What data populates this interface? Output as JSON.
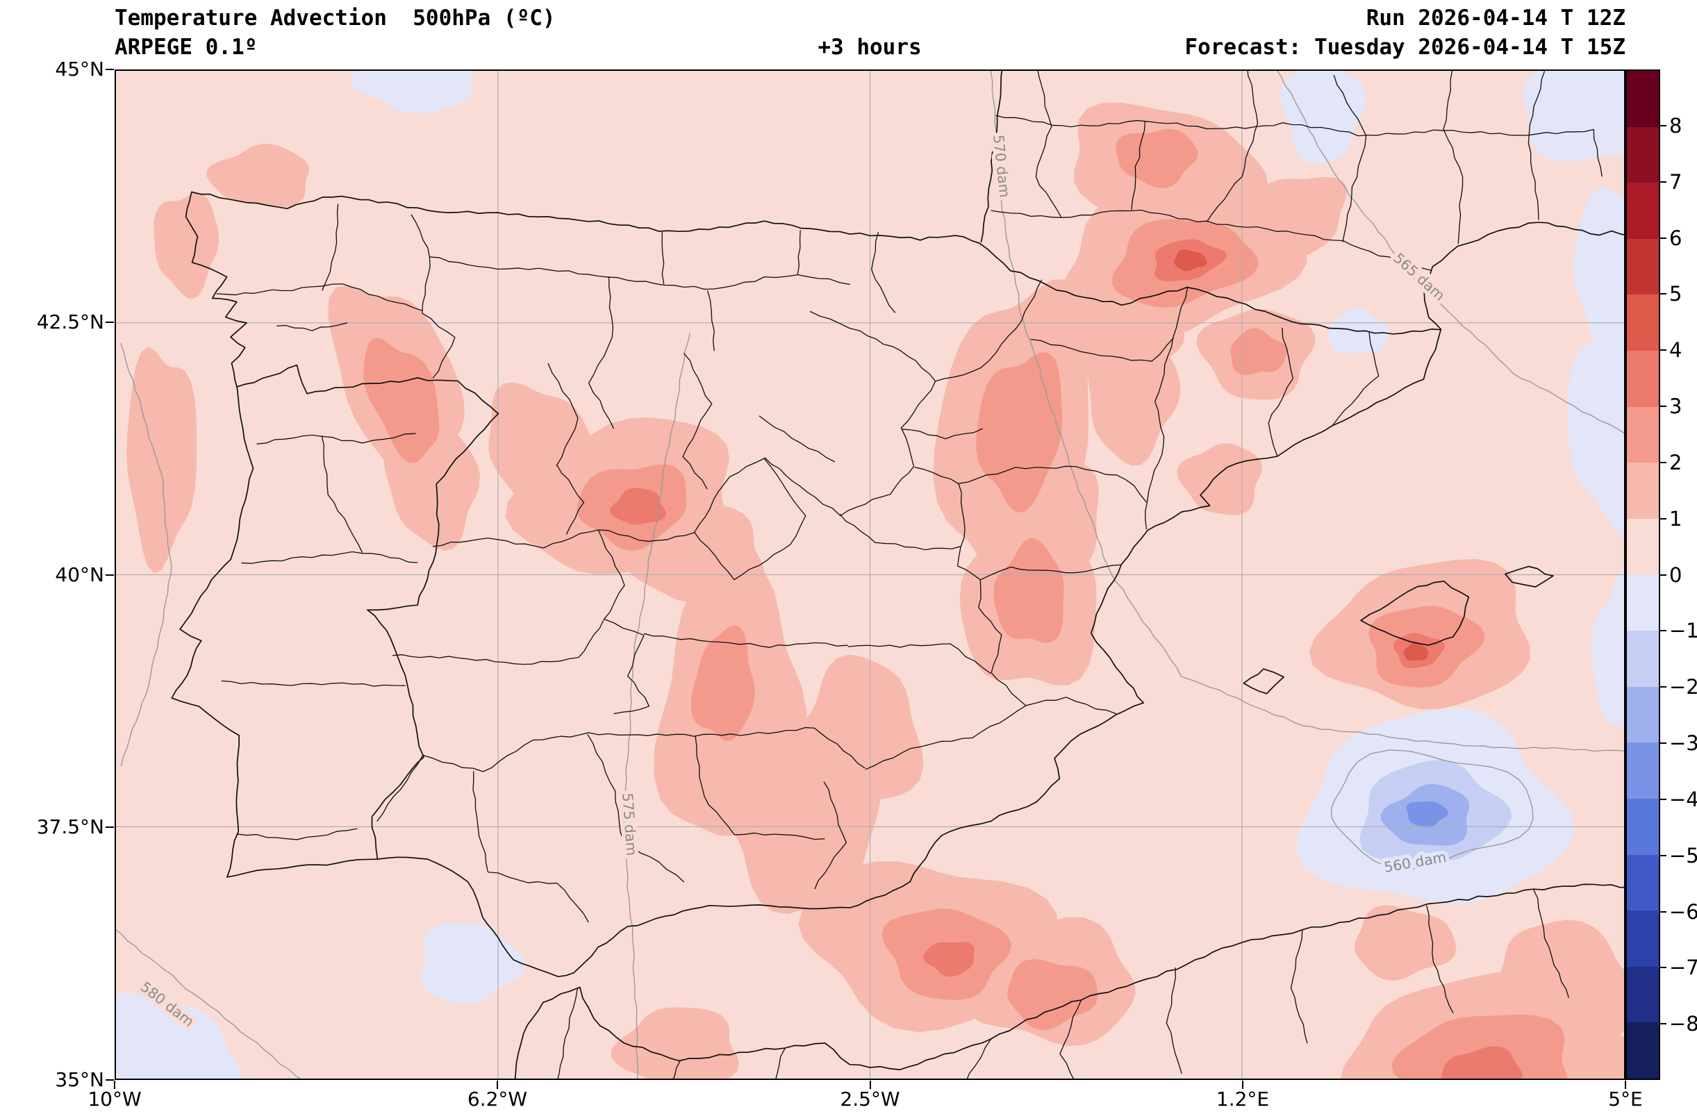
{
  "header": {
    "title": "Temperature Advection  500hPa (ºC)",
    "model": "ARPEGE 0.1º",
    "lead_label": "+3 hours",
    "run_label": "Run 2026-04-14 T 12Z",
    "forecast_label": "Forecast: Tuesday 2026-04-14 T 15Z"
  },
  "axes": {
    "lat_ticks": [
      {
        "label": "45°N",
        "deg": 45
      },
      {
        "label": "42.5°N",
        "deg": 42.5
      },
      {
        "label": "40°N",
        "deg": 40
      },
      {
        "label": "37.5°N",
        "deg": 37.5
      },
      {
        "label": "35°N",
        "deg": 35
      }
    ],
    "lon_ticks": [
      {
        "label": "10°W",
        "deg": -10
      },
      {
        "label": "6.2°W",
        "deg": -6.2
      },
      {
        "label": "2.5°W",
        "deg": -2.5
      },
      {
        "label": "1.2°E",
        "deg": 1.2
      },
      {
        "label": "5°E",
        "deg": 5
      }
    ],
    "gridline_lats": [
      42.5,
      40,
      37.5
    ],
    "gridline_lons": [
      -6.2,
      -2.5,
      1.2
    ]
  },
  "chart_data": {
    "type": "filled_contour_map",
    "variable": "Temperature Advection 500hPa",
    "units": "ºC",
    "model": "ARPEGE 0.1º",
    "run": "2026-04-14 12Z",
    "valid": "Tuesday 2026-04-14 15Z",
    "lead_hours": 3,
    "extent": {
      "lon_min": -10,
      "lon_max": 5,
      "lat_min": 35,
      "lat_max": 45
    },
    "colorbar": {
      "tick_labels": [
        "8",
        "7",
        "6",
        "5",
        "4",
        "3",
        "2",
        "1",
        "0",
        "−1",
        "−2",
        "−3",
        "−4",
        "−5",
        "−6",
        "−7",
        "−8"
      ],
      "band_colors_top_to_bottom": [
        "#67001f",
        "#8c0f23",
        "#ad1a28",
        "#c23533",
        "#de5a4b",
        "#ec7a6e",
        "#f49a8c",
        "#f7b9ad",
        "#fadcd6",
        "#e2e6f8",
        "#c6cef3",
        "#9fb0ee",
        "#7b93e6",
        "#5a78dc",
        "#4058c8",
        "#2e41ab",
        "#202f88",
        "#141f5c"
      ]
    },
    "bands": {
      "p1": "#fadcd6",
      "p2": "#f7b9ad",
      "p3": "#f49a8c",
      "p4": "#ec7a6e",
      "p5": "#de5a4b",
      "m1": "#e2e6f8",
      "m2": "#c6cef3",
      "m3": "#9fb0ee",
      "m4": "#7b93e6"
    },
    "band_meaning": {
      "p1": "0..1 ºC",
      "p2": "1..2 ºC",
      "p3": "2..3 ºC",
      "p4": "3..4 ºC",
      "p5": "4..5 ºC",
      "m1": "-1..0 ºC",
      "m2": "-2..-1 ºC",
      "m3": "-3..-2 ºC",
      "m4": "-4..-3 ºC"
    },
    "background_band": "p1",
    "advection_cells": [
      {
        "b": "m1",
        "c": [
          3.1,
          37.65
        ],
        "r": [
          1.3,
          0.95
        ],
        "a": 0
      },
      {
        "b": "m1",
        "c": [
          4.75,
          44.65
        ],
        "r": [
          0.8,
          0.55
        ],
        "a": 0
      },
      {
        "b": "m1",
        "c": [
          4.95,
          43.0
        ],
        "r": [
          0.45,
          0.85
        ],
        "a": 0
      },
      {
        "b": "m1",
        "c": [
          4.95,
          41.5
        ],
        "r": [
          0.5,
          1.0
        ],
        "a": 0
      },
      {
        "b": "m1",
        "c": [
          5.0,
          39.2
        ],
        "r": [
          0.3,
          0.8
        ],
        "a": 0
      },
      {
        "b": "m1",
        "c": [
          -9.7,
          35.2
        ],
        "r": [
          0.9,
          0.6
        ],
        "a": 0
      },
      {
        "b": "m1",
        "c": [
          -6.5,
          36.15
        ],
        "r": [
          0.5,
          0.4
        ],
        "a": 0
      },
      {
        "b": "m1",
        "c": [
          2.0,
          44.6
        ],
        "r": [
          0.4,
          0.5
        ],
        "a": 0
      },
      {
        "b": "m1",
        "c": [
          -7.0,
          44.9
        ],
        "r": [
          0.6,
          0.3
        ],
        "a": 0
      },
      {
        "b": "m1",
        "c": [
          3.95,
          37.3
        ],
        "r": [
          0.35,
          0.3
        ],
        "a": 0
      },
      {
        "b": "m1",
        "c": [
          2.35,
          42.4
        ],
        "r": [
          0.3,
          0.22
        ],
        "a": 0
      },
      {
        "b": "p2",
        "c": [
          -7.2,
          41.9
        ],
        "r": [
          0.55,
          1.05
        ],
        "a": -22
      },
      {
        "b": "p2",
        "c": [
          -6.85,
          40.9
        ],
        "r": [
          0.45,
          0.6
        ],
        "a": -10
      },
      {
        "b": "p2",
        "c": [
          -4.9,
          40.75
        ],
        "r": [
          1.1,
          0.75
        ],
        "a": -15
      },
      {
        "b": "p2",
        "c": [
          -4.2,
          40.2
        ],
        "r": [
          0.65,
          0.5
        ],
        "a": 0
      },
      {
        "b": "p2",
        "c": [
          -3.9,
          38.7
        ],
        "r": [
          0.7,
          1.35
        ],
        "a": 5
      },
      {
        "b": "p2",
        "c": [
          -3.2,
          37.6
        ],
        "r": [
          0.75,
          0.9
        ],
        "a": -10
      },
      {
        "b": "p2",
        "c": [
          -1.9,
          36.35
        ],
        "r": [
          1.25,
          0.8
        ],
        "a": 8
      },
      {
        "b": "p2",
        "c": [
          -1.05,
          41.4
        ],
        "r": [
          0.75,
          1.5
        ],
        "a": 8
      },
      {
        "b": "p2",
        "c": [
          -0.9,
          39.75
        ],
        "r": [
          0.68,
          0.9
        ],
        "a": 0
      },
      {
        "b": "p2",
        "c": [
          0.55,
          43.1
        ],
        "r": [
          1.2,
          0.7
        ],
        "a": -12
      },
      {
        "b": "p2",
        "c": [
          0.4,
          44.05
        ],
        "r": [
          0.95,
          0.6
        ],
        "a": 10
      },
      {
        "b": "p2",
        "c": [
          1.35,
          42.2
        ],
        "r": [
          0.55,
          0.45
        ],
        "a": 0
      },
      {
        "b": "p2",
        "c": [
          3.05,
          39.4
        ],
        "r": [
          1.05,
          0.72
        ],
        "a": -8
      },
      {
        "b": "p2",
        "c": [
          3.7,
          35.25
        ],
        "r": [
          1.45,
          0.75
        ],
        "a": 0
      },
      {
        "b": "p2",
        "c": [
          4.45,
          35.95
        ],
        "r": [
          0.75,
          0.55
        ],
        "a": 25
      },
      {
        "b": "p2",
        "c": [
          -9.55,
          41.2
        ],
        "r": [
          0.35,
          1.05
        ],
        "a": 0
      },
      {
        "b": "p2",
        "c": [
          -9.3,
          43.3
        ],
        "r": [
          0.32,
          0.5
        ],
        "a": 0
      },
      {
        "b": "p2",
        "c": [
          -8.55,
          43.95
        ],
        "r": [
          0.5,
          0.3
        ],
        "a": 0
      },
      {
        "b": "p2",
        "c": [
          -2.6,
          38.4
        ],
        "r": [
          0.6,
          0.75
        ],
        "a": 0
      },
      {
        "b": "p2",
        "c": [
          0.0,
          42.4
        ],
        "r": [
          0.55,
          0.5
        ],
        "a": 0
      },
      {
        "b": "p2",
        "c": [
          1.7,
          43.55
        ],
        "r": [
          0.55,
          0.4
        ],
        "a": -20
      },
      {
        "b": "p2",
        "c": [
          -0.65,
          40.55
        ],
        "r": [
          0.45,
          0.6
        ],
        "a": 0
      },
      {
        "b": "p2",
        "c": [
          -0.7,
          35.95
        ],
        "r": [
          0.85,
          0.6
        ],
        "a": 0
      },
      {
        "b": "p2",
        "c": [
          -5.8,
          41.3
        ],
        "r": [
          0.5,
          0.6
        ],
        "a": -30
      },
      {
        "b": "p2",
        "c": [
          2.8,
          36.35
        ],
        "r": [
          0.5,
          0.35
        ],
        "a": 0
      },
      {
        "b": "p2",
        "c": [
          0.1,
          41.8
        ],
        "r": [
          0.45,
          0.65
        ],
        "a": 0
      },
      {
        "b": "p2",
        "c": [
          1.0,
          40.95
        ],
        "r": [
          0.4,
          0.35
        ],
        "a": 0
      },
      {
        "b": "p2",
        "c": [
          -4.4,
          35.3
        ],
        "r": [
          0.6,
          0.4
        ],
        "a": 0
      },
      {
        "b": "m2",
        "c": [
          3.08,
          37.62
        ],
        "r": [
          0.72,
          0.5
        ],
        "a": -5
      },
      {
        "b": "p3",
        "c": [
          -7.15,
          41.75
        ],
        "r": [
          0.32,
          0.62
        ],
        "a": -22
      },
      {
        "b": "p3",
        "c": [
          -4.85,
          40.7
        ],
        "r": [
          0.55,
          0.4
        ],
        "a": -10
      },
      {
        "b": "p3",
        "c": [
          -1.0,
          41.45
        ],
        "r": [
          0.42,
          0.75
        ],
        "a": 8
      },
      {
        "b": "p3",
        "c": [
          -0.9,
          39.8
        ],
        "r": [
          0.35,
          0.5
        ],
        "a": 0
      },
      {
        "b": "p3",
        "c": [
          0.6,
          43.1
        ],
        "r": [
          0.7,
          0.42
        ],
        "a": -10
      },
      {
        "b": "p3",
        "c": [
          3.0,
          39.3
        ],
        "r": [
          0.55,
          0.4
        ],
        "a": -10
      },
      {
        "b": "p3",
        "c": [
          -1.75,
          36.25
        ],
        "r": [
          0.6,
          0.45
        ],
        "a": 8
      },
      {
        "b": "p3",
        "c": [
          3.65,
          35.15
        ],
        "r": [
          0.85,
          0.5
        ],
        "a": 0
      },
      {
        "b": "p3",
        "c": [
          -3.95,
          38.9
        ],
        "r": [
          0.3,
          0.55
        ],
        "a": 5
      },
      {
        "b": "p3",
        "c": [
          1.35,
          42.2
        ],
        "r": [
          0.28,
          0.22
        ],
        "a": 0
      },
      {
        "b": "p3",
        "c": [
          -0.7,
          35.85
        ],
        "r": [
          0.45,
          0.33
        ],
        "a": 0
      },
      {
        "b": "p3",
        "c": [
          0.35,
          44.15
        ],
        "r": [
          0.4,
          0.28
        ],
        "a": 0
      },
      {
        "b": "m3",
        "c": [
          3.06,
          37.6
        ],
        "r": [
          0.43,
          0.3
        ],
        "a": -5
      },
      {
        "b": "p4",
        "c": [
          -4.8,
          40.67
        ],
        "r": [
          0.26,
          0.18
        ],
        "a": 0
      },
      {
        "b": "p4",
        "c": [
          0.65,
          43.12
        ],
        "r": [
          0.35,
          0.2
        ],
        "a": -10
      },
      {
        "b": "p4",
        "c": [
          2.95,
          39.25
        ],
        "r": [
          0.24,
          0.17
        ],
        "a": 0
      },
      {
        "b": "p4",
        "c": [
          -1.7,
          36.2
        ],
        "r": [
          0.25,
          0.17
        ],
        "a": 0
      },
      {
        "b": "p4",
        "c": [
          3.6,
          35.05
        ],
        "r": [
          0.4,
          0.25
        ],
        "a": 0
      },
      {
        "b": "p5",
        "c": [
          2.93,
          39.23
        ],
        "r": [
          0.12,
          0.09
        ],
        "a": 0
      },
      {
        "b": "p5",
        "c": [
          0.68,
          43.12
        ],
        "r": [
          0.16,
          0.1
        ],
        "a": 0
      },
      {
        "b": "m4",
        "c": [
          3.03,
          37.63
        ],
        "r": [
          0.2,
          0.13
        ],
        "a": 0
      }
    ],
    "geopotential_contours": [
      {
        "label": "570 dam",
        "halo": "#fadcd6",
        "points": [
          [
            -1.3,
            45.2
          ],
          [
            -1.22,
            43.8
          ],
          [
            -1.0,
            42.6
          ],
          [
            -0.55,
            41.2
          ],
          [
            -0.1,
            40.0
          ],
          [
            0.6,
            39.0
          ],
          [
            1.8,
            38.5
          ],
          [
            3.4,
            38.3
          ],
          [
            5.1,
            38.25
          ]
        ],
        "label_pos": [
          -1.24,
          44.05
        ],
        "label_rot": 84
      },
      {
        "label": "565 dam",
        "halo": "#fadcd6",
        "points": [
          [
            1.45,
            45.2
          ],
          [
            2.1,
            44.0
          ],
          [
            2.9,
            42.95
          ],
          [
            3.9,
            42.0
          ],
          [
            5.1,
            41.35
          ]
        ],
        "label_pos": [
          2.93,
          42.92
        ],
        "label_rot": 42
      },
      {
        "label": "575 dam",
        "halo": "#fadcd6",
        "points": [
          [
            -4.3,
            42.4
          ],
          [
            -4.55,
            41.0
          ],
          [
            -4.85,
            39.2
          ],
          [
            -4.95,
            37.5
          ],
          [
            -4.85,
            36.2
          ],
          [
            -4.8,
            34.9
          ]
        ],
        "label_pos": [
          -4.94,
          37.52
        ],
        "label_rot": 86
      },
      {
        "label": "",
        "halo": "#fadcd6",
        "points": [
          [
            -9.95,
            42.3
          ],
          [
            -9.55,
            41.0
          ],
          [
            -9.45,
            40.0
          ],
          [
            -9.65,
            39.0
          ],
          [
            -9.95,
            38.1
          ]
        ],
        "label_pos": [
          0,
          0
        ],
        "label_rot": 0
      },
      {
        "label": "560 dam",
        "halo": "#e2e6f8",
        "ellipse": {
          "center": [
            3.05,
            37.68
          ],
          "rx": 1.0,
          "ry": 0.55
        },
        "label_pos": [
          2.93,
          37.1
        ],
        "label_rot": -10
      },
      {
        "label": "580 dam",
        "halo": "#fadcd6",
        "points": [
          [
            -10.1,
            36.55
          ],
          [
            -9.3,
            35.9
          ],
          [
            -8.6,
            35.35
          ],
          [
            -8.05,
            34.9
          ]
        ],
        "label_pos": [
          -9.52,
          35.7
        ],
        "label_rot": 38
      }
    ]
  }
}
